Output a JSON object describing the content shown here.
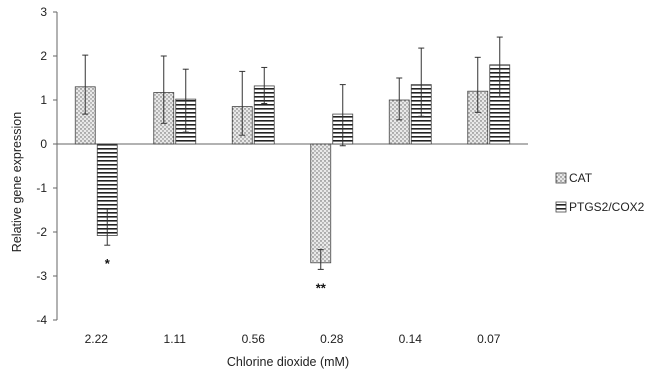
{
  "chart_data": {
    "type": "bar",
    "title": "",
    "xlabel": "Chlorine dioxide (mM)",
    "ylabel": "Relative gene expression",
    "categories": [
      "2.22",
      "1.11",
      "0.56",
      "0.28",
      "0.14",
      "0.07"
    ],
    "ylim": [
      -4,
      3
    ],
    "yticks": [
      "3",
      "2",
      "1",
      "0",
      "-1",
      "-2",
      "-3",
      "-4"
    ],
    "grid": false,
    "legend_position": "right",
    "series": [
      {
        "name": "CAT",
        "pattern": "dotted",
        "values": [
          1.3,
          1.17,
          0.85,
          -2.7,
          1.0,
          1.2
        ],
        "error_up": [
          0.72,
          0.83,
          0.8,
          0.3,
          0.5,
          0.77
        ],
        "error_down": [
          0.62,
          0.7,
          0.65,
          0.15,
          0.45,
          0.48
        ]
      },
      {
        "name": "PTGS2/COX2",
        "pattern": "horizontal-stripes",
        "values": [
          -2.08,
          1.02,
          1.32,
          0.68,
          1.35,
          1.8
        ],
        "error_up": [
          0.6,
          0.68,
          0.42,
          0.67,
          0.83,
          0.63
        ],
        "error_down": [
          0.22,
          0.75,
          0.4,
          0.72,
          0.72,
          0.72
        ]
      }
    ],
    "annotations": [
      {
        "category": "2.22",
        "series": "PTGS2/COX2",
        "text": "*"
      },
      {
        "category": "0.28",
        "series": "CAT",
        "text": "**"
      }
    ]
  }
}
